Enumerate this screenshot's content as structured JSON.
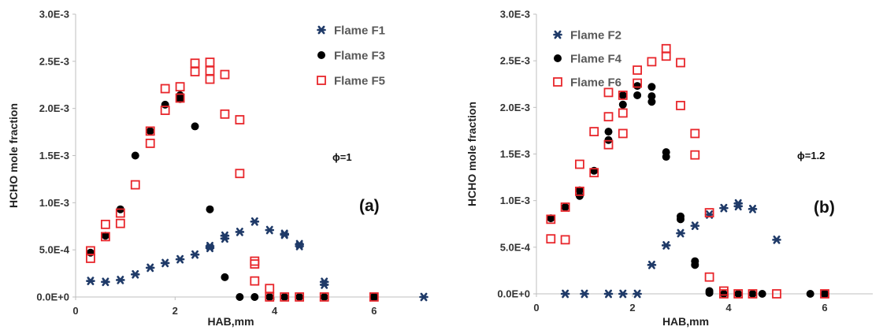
{
  "colors": {
    "navy": "#1f3a68",
    "black": "#000000",
    "red": "#e8262b",
    "axis": "#bfbfbf"
  },
  "chart_data": [
    {
      "type": "scatter",
      "title": "",
      "xlabel": "HAB,mm",
      "ylabel": "HCHO mole fraction",
      "xlim": [
        0,
        7
      ],
      "ylim": [
        0,
        0.003
      ],
      "xticks": [
        0,
        2,
        4,
        6
      ],
      "yticks": [
        0,
        0.0005,
        0.001,
        0.0015,
        0.002,
        0.0025,
        0.003
      ],
      "ytick_labels": [
        "0.0E+0",
        "5.0E-4",
        "1.0E-3",
        "1.5E-3",
        "2.0E-3",
        "2.5E-3",
        "3.0E-3"
      ],
      "xtick_labels": [
        "0",
        "2",
        "4",
        "6"
      ],
      "legend_position": "top-right",
      "annotation": "ϕ=1",
      "panel_label": "(a)",
      "series": [
        {
          "name": "Flame F1",
          "marker": "star",
          "color": "#1f3a68",
          "points": [
            [
              0.3,
              0.00017
            ],
            [
              0.6,
              0.00016
            ],
            [
              0.9,
              0.00018
            ],
            [
              1.2,
              0.00024
            ],
            [
              1.5,
              0.00031
            ],
            [
              1.8,
              0.00036
            ],
            [
              2.1,
              0.0004
            ],
            [
              2.4,
              0.00045
            ],
            [
              2.7,
              0.00052
            ],
            [
              2.7,
              0.00054
            ],
            [
              3.0,
              0.00062
            ],
            [
              3.0,
              0.00065
            ],
            [
              3.3,
              0.00069
            ],
            [
              3.6,
              0.0008
            ],
            [
              3.9,
              0.00071
            ],
            [
              4.2,
              0.00066
            ],
            [
              4.2,
              0.00067
            ],
            [
              4.5,
              0.00054
            ],
            [
              4.5,
              0.00056
            ],
            [
              5.0,
              0.00013
            ],
            [
              5.0,
              0.00016
            ],
            [
              6.0,
              0.0
            ],
            [
              7.0,
              0.0
            ]
          ]
        },
        {
          "name": "Flame F3",
          "marker": "circle",
          "color": "#000000",
          "points": [
            [
              0.3,
              0.00047
            ],
            [
              0.6,
              0.00065
            ],
            [
              0.9,
              0.00093
            ],
            [
              1.2,
              0.0015
            ],
            [
              1.5,
              0.00176
            ],
            [
              1.8,
              0.00204
            ],
            [
              2.1,
              0.0021
            ],
            [
              2.1,
              0.00214
            ],
            [
              2.4,
              0.00181
            ],
            [
              2.7,
              0.00093
            ],
            [
              3.0,
              0.00021
            ],
            [
              3.3,
              0.0
            ],
            [
              3.6,
              0.0
            ],
            [
              3.9,
              0.0
            ],
            [
              4.2,
              0.0
            ],
            [
              4.5,
              0.0
            ],
            [
              5.0,
              0.0
            ],
            [
              6.0,
              0.0
            ]
          ]
        },
        {
          "name": "Flame F5",
          "marker": "square",
          "color": "#e8262b",
          "points": [
            [
              0.3,
              0.00041
            ],
            [
              0.3,
              0.00049
            ],
            [
              0.6,
              0.00064
            ],
            [
              0.6,
              0.00077
            ],
            [
              0.9,
              0.00078
            ],
            [
              0.9,
              0.00089
            ],
            [
              1.2,
              0.00119
            ],
            [
              1.5,
              0.00163
            ],
            [
              1.5,
              0.00176
            ],
            [
              1.8,
              0.00198
            ],
            [
              1.8,
              0.00221
            ],
            [
              2.1,
              0.00211
            ],
            [
              2.1,
              0.00223
            ],
            [
              2.4,
              0.00239
            ],
            [
              2.4,
              0.00248
            ],
            [
              2.7,
              0.00231
            ],
            [
              2.7,
              0.0024
            ],
            [
              2.7,
              0.00249
            ],
            [
              3.0,
              0.00194
            ],
            [
              3.0,
              0.00236
            ],
            [
              3.3,
              0.00131
            ],
            [
              3.3,
              0.00188
            ],
            [
              3.6,
              0.00017
            ],
            [
              3.6,
              0.00035
            ],
            [
              3.6,
              0.00038
            ],
            [
              3.9,
              9e-05
            ],
            [
              3.9,
              0.0
            ],
            [
              4.2,
              0.0
            ],
            [
              4.5,
              0.0
            ],
            [
              5.0,
              0.0
            ],
            [
              6.0,
              0.0
            ]
          ]
        }
      ]
    },
    {
      "type": "scatter",
      "title": "",
      "xlabel": "HAB,mm",
      "ylabel": "HCHO mole fraction",
      "xlim": [
        0,
        7
      ],
      "ylim": [
        0,
        0.003
      ],
      "xticks": [
        0,
        2,
        4,
        6
      ],
      "yticks": [
        0,
        0.0005,
        0.001,
        0.0015,
        0.002,
        0.0025,
        0.003
      ],
      "ytick_labels": [
        "0.0E+0",
        "5.0E-4",
        "1.0E-3",
        "1.5E-3",
        "2.0E-3",
        "2.5E-3",
        "3.0E-3"
      ],
      "xtick_labels": [
        "0",
        "2",
        "4",
        "6"
      ],
      "legend_position": "top-right",
      "annotation": "ϕ=1.2",
      "panel_label": "(b)",
      "series": [
        {
          "name": "Flame F2",
          "marker": "star",
          "color": "#1f3a68",
          "points": [
            [
              0.6,
              0.0
            ],
            [
              1.0,
              0.0
            ],
            [
              1.5,
              0.0
            ],
            [
              1.8,
              0.0
            ],
            [
              2.1,
              0.0
            ],
            [
              2.4,
              0.00031
            ],
            [
              2.7,
              0.00052
            ],
            [
              3.0,
              0.00065
            ],
            [
              3.3,
              0.00073
            ],
            [
              3.6,
              0.00085
            ],
            [
              3.9,
              0.00092
            ],
            [
              4.2,
              0.00094
            ],
            [
              4.2,
              0.00097
            ],
            [
              4.5,
              0.00091
            ],
            [
              5.0,
              0.00058
            ],
            [
              6.0,
              0.0
            ]
          ]
        },
        {
          "name": "Flame F4",
          "marker": "circle",
          "color": "#000000",
          "points": [
            [
              0.3,
              0.00081
            ],
            [
              0.6,
              0.00093
            ],
            [
              0.9,
              0.00105
            ],
            [
              0.9,
              0.00111
            ],
            [
              1.2,
              0.00132
            ],
            [
              1.5,
              0.00165
            ],
            [
              1.5,
              0.00174
            ],
            [
              1.8,
              0.00203
            ],
            [
              1.8,
              0.00213
            ],
            [
              2.1,
              0.00213
            ],
            [
              2.1,
              0.00223
            ],
            [
              2.4,
              0.00206
            ],
            [
              2.4,
              0.00212
            ],
            [
              2.4,
              0.00222
            ],
            [
              2.7,
              0.00147
            ],
            [
              2.7,
              0.00152
            ],
            [
              3.0,
              0.0008
            ],
            [
              3.0,
              0.00083
            ],
            [
              3.3,
              0.00031
            ],
            [
              3.3,
              0.00035
            ],
            [
              3.6,
              1e-05
            ],
            [
              3.6,
              3e-05
            ],
            [
              3.9,
              0.0
            ],
            [
              4.2,
              0.0
            ],
            [
              4.5,
              0.0
            ],
            [
              4.7,
              0.0
            ],
            [
              5.7,
              0.0
            ],
            [
              6.0,
              0.0
            ]
          ]
        },
        {
          "name": "Flame F6",
          "marker": "square",
          "color": "#e8262b",
          "points": [
            [
              0.3,
              0.00059
            ],
            [
              0.3,
              0.0008
            ],
            [
              0.6,
              0.00058
            ],
            [
              0.6,
              0.00093
            ],
            [
              0.9,
              0.0011
            ],
            [
              0.9,
              0.00139
            ],
            [
              1.2,
              0.0013
            ],
            [
              1.2,
              0.00174
            ],
            [
              1.5,
              0.0016
            ],
            [
              1.5,
              0.0019
            ],
            [
              1.5,
              0.00216
            ],
            [
              1.8,
              0.00172
            ],
            [
              1.8,
              0.00194
            ],
            [
              1.8,
              0.00213
            ],
            [
              2.1,
              0.00226
            ],
            [
              2.1,
              0.0024
            ],
            [
              2.4,
              0.00249
            ],
            [
              2.7,
              0.00255
            ],
            [
              2.7,
              0.00263
            ],
            [
              3.0,
              0.00202
            ],
            [
              3.0,
              0.00248
            ],
            [
              3.3,
              0.00149
            ],
            [
              3.3,
              0.00172
            ],
            [
              3.6,
              0.00018
            ],
            [
              3.6,
              0.00087
            ],
            [
              3.9,
              0.0
            ],
            [
              3.9,
              3e-05
            ],
            [
              4.2,
              0.0
            ],
            [
              4.5,
              0.0
            ],
            [
              5.0,
              0.0
            ],
            [
              6.0,
              0.0
            ]
          ]
        }
      ]
    }
  ]
}
